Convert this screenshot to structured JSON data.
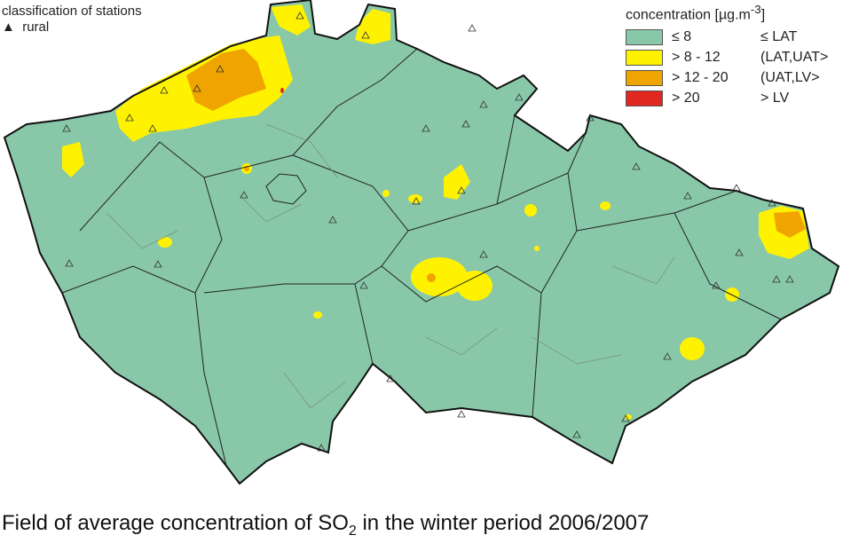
{
  "station_legend": {
    "title": "classification of stations",
    "symbol": "triangle",
    "label": "rural"
  },
  "legend": {
    "title": "concentration [µg.m",
    "title_sup": "-3",
    "title_end": "]",
    "classes": [
      {
        "range": "≤ 8",
        "limit": "≤ LAT",
        "color": "#88c8a8"
      },
      {
        "range": "> 8 - 12",
        "limit": "(LAT,UAT>",
        "color": "#fff200"
      },
      {
        "range": "> 12 - 20",
        "limit": "(UAT,LV>",
        "color": "#f0a400"
      },
      {
        "range": "> 20",
        "limit": "> LV",
        "color": "#e02820"
      }
    ]
  },
  "caption": {
    "pre": "Field of average concentration of SO",
    "sub": "2",
    "post": " in the winter period 2006/2007"
  }
}
